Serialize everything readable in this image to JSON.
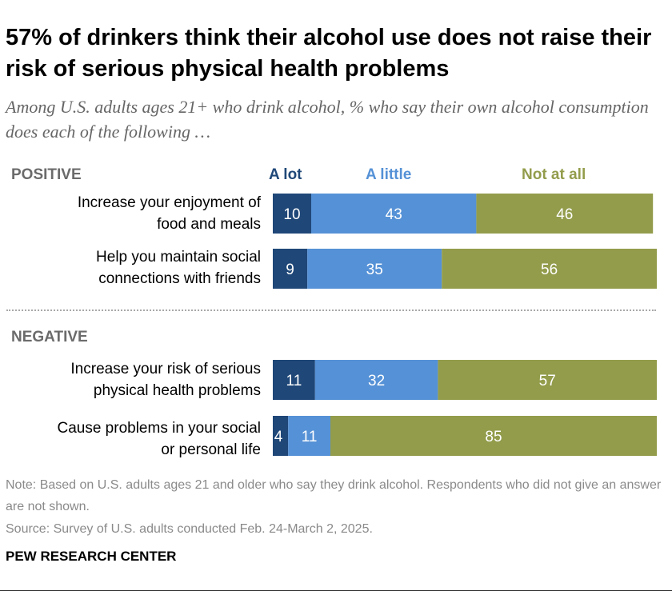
{
  "title": "57% of drinkers think their alcohol use does not raise their risk of serious physical health problems",
  "subtitle": "Among U.S. adults ages 21+ who drink alcohol, % who say their own alcohol consumption does each of the following …",
  "colors": {
    "a_lot": "#1f4778",
    "a_little": "#5591d6",
    "not_at_all": "#939c4b"
  },
  "chart_data": {
    "type": "bar",
    "stacked": true,
    "orientation": "horizontal",
    "legend": [
      "A lot",
      "A little",
      "Not at all"
    ],
    "sections": [
      {
        "name": "POSITIVE",
        "rows": [
          {
            "label_lines": [
              "Increase your enjoyment of",
              "food and meals"
            ],
            "values": [
              10,
              43,
              46
            ]
          },
          {
            "label_lines": [
              "Help you maintain social",
              "connections with friends"
            ],
            "values": [
              9,
              35,
              56
            ]
          }
        ]
      },
      {
        "name": "NEGATIVE",
        "rows": [
          {
            "label_lines": [
              "Increase your risk of serious",
              "physical health problems"
            ],
            "values": [
              11,
              32,
              57
            ]
          },
          {
            "label_lines": [
              "Cause problems in your social",
              "or personal life"
            ],
            "values": [
              4,
              11,
              85
            ]
          }
        ]
      }
    ]
  },
  "note": "Note: Based on U.S. adults ages 21 and older who say they drink alcohol. Respondents who did not give an answer are not shown.",
  "source": "Source: Survey of U.S. adults conducted Feb. 24-March 2, 2025.",
  "brand": "PEW RESEARCH CENTER"
}
